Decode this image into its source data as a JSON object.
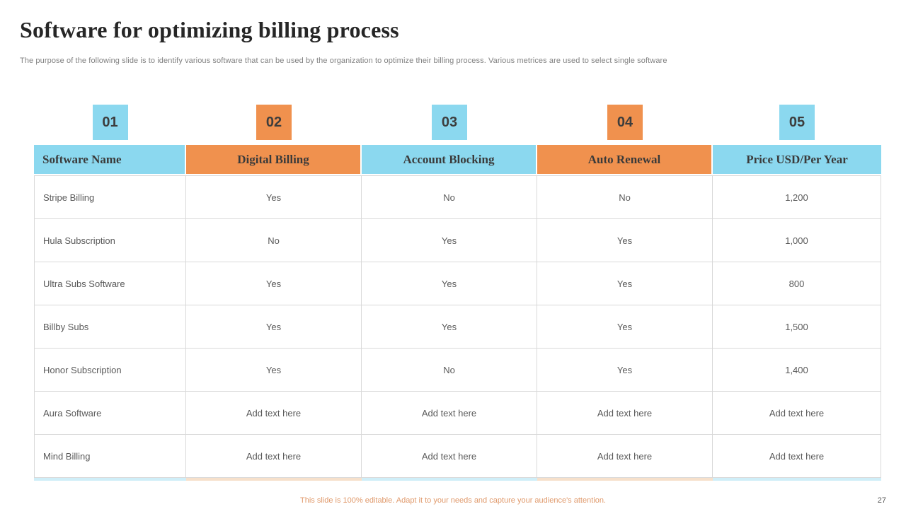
{
  "slide": {
    "title": "Software for optimizing billing process",
    "subtitle": "The purpose of the following slide is to identify various software that can be used by the organization to optimize their billing process. Various metrices are used to select single software",
    "footer_note": "This slide is 100% editable. Adapt it to your needs and capture your audience's attention.",
    "page_number": "27"
  },
  "colors": {
    "cyan": "#8bd8ef",
    "orange": "#f0914e",
    "cyan_light": "#cfeef8",
    "orange_light": "#f6e0cb",
    "title_text": "#262626",
    "subtitle_text": "#808080",
    "header_text": "#3a3a3a",
    "body_text": "#595959",
    "footer_text": "#e09a6c",
    "grid_line": "#d9d9d9"
  },
  "badges": [
    {
      "label": "01"
    },
    {
      "label": "02"
    },
    {
      "label": "03"
    },
    {
      "label": "04"
    },
    {
      "label": "05"
    }
  ],
  "table": {
    "headers": [
      {
        "label": "Software Name"
      },
      {
        "label": "Digital Billing"
      },
      {
        "label": "Account Blocking"
      },
      {
        "label": "Auto Renewal"
      },
      {
        "label": "Price USD/Per Year"
      }
    ],
    "rows": [
      [
        "Stripe Billing",
        "Yes",
        "No",
        "No",
        "1,200"
      ],
      [
        "Hula Subscription",
        "No",
        "Yes",
        "Yes",
        "1,000"
      ],
      [
        "Ultra Subs Software",
        "Yes",
        "Yes",
        "Yes",
        "800"
      ],
      [
        "Billby Subs",
        "Yes",
        "Yes",
        "Yes",
        "1,500"
      ],
      [
        "Honor Subscription",
        "Yes",
        "No",
        "Yes",
        "1,400"
      ],
      [
        "Aura Software",
        "Add text here",
        "Add text here",
        "Add text here",
        "Add text here"
      ],
      [
        "Mind Billing",
        "Add text here",
        "Add text here",
        "Add text here",
        "Add text here"
      ]
    ]
  }
}
